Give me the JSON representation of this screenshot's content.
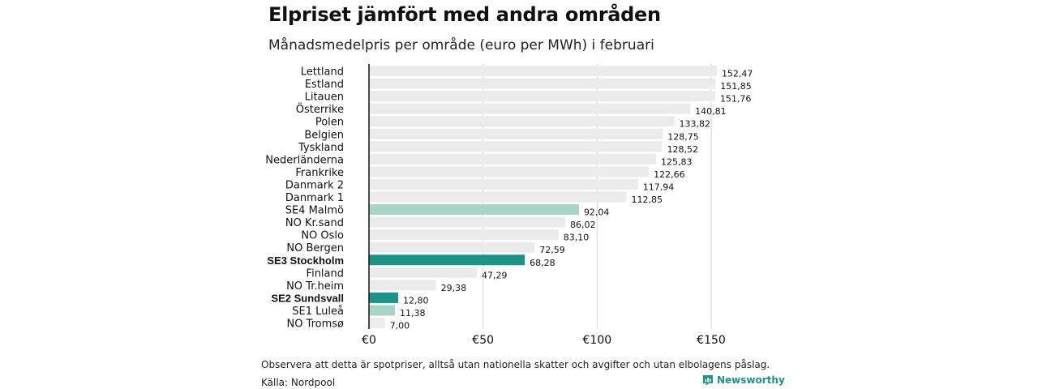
{
  "header": {
    "title": "Elpriset jämfört med andra områden",
    "subtitle": "Månadsmedelpris per område (euro per MWh) i februari"
  },
  "footer": {
    "note": "Observera att detta är spotpriser, alltså utan nationella skatter och avgifter och utan elbolagens påslag.",
    "source": "Källa: Nordpool",
    "brand": "Newsworthy",
    "brand_icon": "newsworthy-logo-icon"
  },
  "colors": {
    "default_bar": "#ebebeb",
    "light_teal": "#a8d4c8",
    "dark_teal": "#1a9485",
    "gridline": "#d4d4d4",
    "axis": "#111111"
  },
  "chart_data": {
    "type": "bar",
    "orientation": "horizontal",
    "title": "Elpriset jämfört med andra områden",
    "subtitle": "Månadsmedelpris per område (euro per MWh) i februari",
    "xlim": [
      0,
      150
    ],
    "xticks": [
      0,
      50,
      100,
      150
    ],
    "xtick_labels": [
      "€0",
      "€50",
      "€100",
      "€150"
    ],
    "grid": true,
    "categories": [
      "Lettland",
      "Estland",
      "Litauen",
      "Österrike",
      "Polen",
      "Belgien",
      "Tyskland",
      "Nederländerna",
      "Frankrike",
      "Danmark 2",
      "Danmark 1",
      "SE4 Malmö",
      "NO Kr.sand",
      "NO Oslo",
      "NO Bergen",
      "SE3 Stockholm",
      "Finland",
      "NO Tr.heim",
      "SE2 Sundsvall",
      "SE1 Luleå",
      "NO Tromsø"
    ],
    "values": [
      152.47,
      151.85,
      151.76,
      140.81,
      133.82,
      128.75,
      128.52,
      125.83,
      122.66,
      117.94,
      112.85,
      92.04,
      86.02,
      83.1,
      72.59,
      68.28,
      47.29,
      29.38,
      12.8,
      11.38,
      7.0
    ],
    "value_labels": [
      "152,47",
      "151,85",
      "151,76",
      "140,81",
      "133,82",
      "128,75",
      "128,52",
      "125,83",
      "122,66",
      "117,94",
      "112,85",
      "92,04",
      "86,02",
      "83,10",
      "72,59",
      "68,28",
      "47,29",
      "29,38",
      "12,80",
      "11,38",
      "7,00"
    ],
    "highlight": [
      "default",
      "default",
      "default",
      "default",
      "default",
      "default",
      "default",
      "default",
      "default",
      "default",
      "default",
      "light",
      "default",
      "default",
      "default",
      "dark",
      "default",
      "default",
      "dark",
      "light",
      "default"
    ],
    "bold_labels": [
      false,
      false,
      false,
      false,
      false,
      false,
      false,
      false,
      false,
      false,
      false,
      false,
      false,
      false,
      false,
      true,
      false,
      false,
      true,
      false,
      false
    ]
  }
}
